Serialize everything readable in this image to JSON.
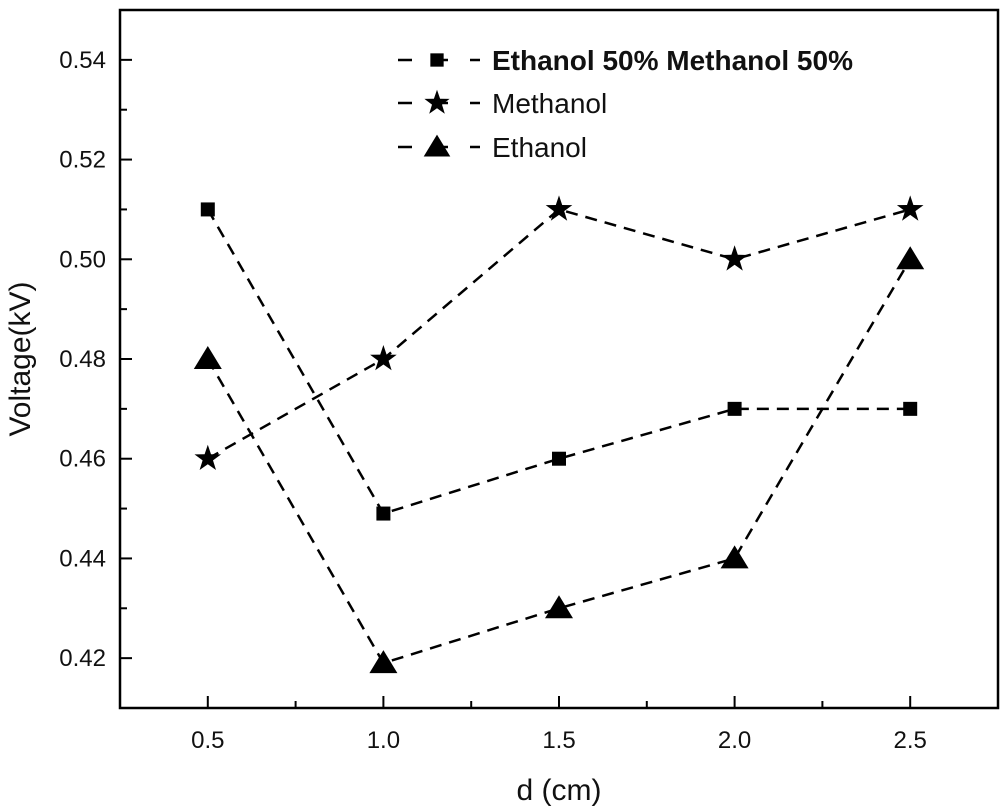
{
  "chart_data": {
    "type": "line",
    "title": "",
    "xlabel": "d (cm)",
    "ylabel": "Voltage(kV)",
    "xlim": [
      0.25,
      2.75
    ],
    "ylim": [
      0.41,
      0.55
    ],
    "xticks": [
      "0.5",
      "1.0",
      "1.5",
      "2.0",
      "2.5"
    ],
    "yticks": [
      "0.42",
      "0.44",
      "0.46",
      "0.48",
      "0.50",
      "0.52",
      "0.54"
    ],
    "grid": false,
    "legend_position": "top-right",
    "x": [
      0.5,
      1.0,
      1.5,
      2.0,
      2.5
    ],
    "series": [
      {
        "name": "Ethanol 50% Methanol 50%",
        "marker": "square",
        "line": "dashed",
        "color": "#000000",
        "values": [
          0.51,
          0.449,
          0.46,
          0.47,
          0.47
        ]
      },
      {
        "name": "Methanol",
        "marker": "star",
        "line": "dashed",
        "color": "#000000",
        "values": [
          0.46,
          0.48,
          0.51,
          0.5,
          0.51
        ]
      },
      {
        "name": "Ethanol",
        "marker": "triangle",
        "line": "dashed",
        "color": "#000000",
        "values": [
          0.48,
          0.419,
          0.43,
          0.44,
          0.5
        ]
      }
    ]
  }
}
